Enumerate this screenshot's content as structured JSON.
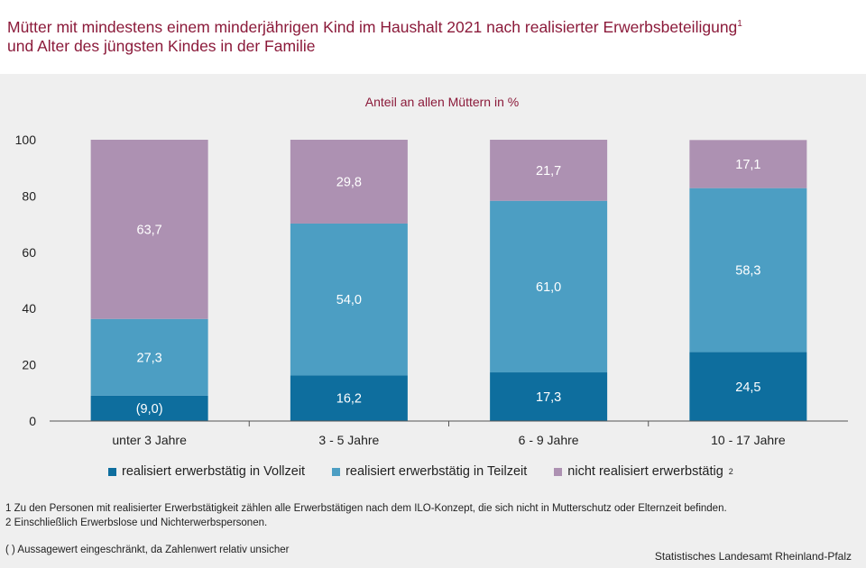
{
  "header": {
    "title_line1": "Mütter mit mindestens einem minderjährigen Kind im Haushalt 2021 nach realisierter Erwerbsbeteiligung",
    "title_sup": "1",
    "title_line2": "und Alter des jüngsten Kindes in der Familie"
  },
  "chart_data": {
    "type": "bar",
    "stacked": true,
    "subtitle": "Anteil an allen Müttern in %",
    "categories": [
      "unter 3 Jahre",
      "3 - 5 Jahre",
      "6 - 9 Jahre",
      "10 - 17 Jahre"
    ],
    "series": [
      {
        "name": "realisiert erwerbstätig in Vollzeit",
        "values": [
          9.0,
          16.2,
          17.3,
          24.5
        ],
        "labels": [
          "(9,0)",
          "16,2",
          "17,3",
          "24,5"
        ],
        "color": "#0e6e9e"
      },
      {
        "name": "realisiert erwerbstätig in Teilzeit",
        "values": [
          27.3,
          54.0,
          61.0,
          58.3
        ],
        "labels": [
          "27,3",
          "54,0",
          "61,0",
          "58,3"
        ],
        "color": "#4c9ec3"
      },
      {
        "name": "nicht realisiert erwerbstätig",
        "name_sup": "2",
        "values": [
          63.7,
          29.8,
          21.7,
          17.1
        ],
        "labels": [
          "63,7",
          "29,8",
          "21,7",
          "17,1"
        ],
        "color": "#ad91b2"
      }
    ],
    "ylim": [
      0,
      100
    ],
    "yticks": [
      "0",
      "20",
      "40",
      "60",
      "80",
      "100"
    ],
    "grid": false,
    "legend_position": "bottom"
  },
  "footnotes": {
    "note1": "1 Zu den Personen mit realisierter Erwerbstätigkeit zählen alle Erwerbstätigen nach dem ILO-Konzept, die sich nicht in Mutterschutz oder Elternzeit befinden.",
    "note2": "2 Einschließlich Erwerbslose und Nichterwerbspersonen.",
    "note3": "( ) Aussagewert eingeschränkt, da Zahlenwert relativ unsicher"
  },
  "source": "Statistisches Landesamt Rheinland-Pfalz"
}
